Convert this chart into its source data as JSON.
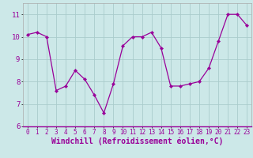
{
  "x": [
    0,
    1,
    2,
    3,
    4,
    5,
    6,
    7,
    8,
    9,
    10,
    11,
    12,
    13,
    14,
    15,
    16,
    17,
    18,
    19,
    20,
    21,
    22,
    23
  ],
  "y": [
    10.1,
    10.2,
    10.0,
    7.6,
    7.8,
    8.5,
    8.1,
    7.4,
    6.6,
    7.9,
    9.6,
    10.0,
    10.0,
    10.2,
    9.5,
    7.8,
    7.8,
    7.9,
    8.0,
    8.6,
    9.8,
    11.0,
    11.0,
    10.5
  ],
  "line_color": "#990099",
  "marker_color": "#990099",
  "bg_color": "#cce8e8",
  "grid_color": "#aacccc",
  "xlabel": "Windchill (Refroidissement éolien,°C)",
  "xlabel_color": "#990099",
  "ylim": [
    6,
    11.5
  ],
  "xlim": [
    -0.5,
    23.5
  ],
  "yticks": [
    6,
    7,
    8,
    9,
    10,
    11
  ],
  "xticks": [
    0,
    1,
    2,
    3,
    4,
    5,
    6,
    7,
    8,
    9,
    10,
    11,
    12,
    13,
    14,
    15,
    16,
    17,
    18,
    19,
    20,
    21,
    22,
    23
  ],
  "tick_fontsize": 5.5,
  "xlabel_fontsize": 7.0,
  "ytick_fontsize": 6.5
}
